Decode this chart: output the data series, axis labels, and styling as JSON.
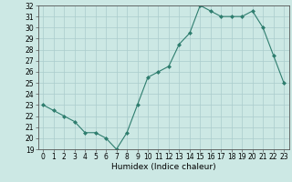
{
  "x": [
    0,
    1,
    2,
    3,
    4,
    5,
    6,
    7,
    8,
    9,
    10,
    11,
    12,
    13,
    14,
    15,
    16,
    17,
    18,
    19,
    20,
    21,
    22,
    23
  ],
  "y": [
    23,
    22.5,
    22,
    21.5,
    20.5,
    20.5,
    20,
    19,
    20.5,
    23,
    25.5,
    26,
    26.5,
    28.5,
    29.5,
    32,
    31.5,
    31,
    31,
    31,
    31.5,
    30,
    27.5,
    25
  ],
  "line_color": "#2e7d6e",
  "marker": "D",
  "marker_size": 2,
  "bg_color": "#cce8e4",
  "grid_color": "#aacccc",
  "xlabel": "Humidex (Indice chaleur)",
  "ylim": [
    19,
    32
  ],
  "xlim": [
    -0.5,
    23.5
  ],
  "yticks": [
    19,
    20,
    21,
    22,
    23,
    24,
    25,
    26,
    27,
    28,
    29,
    30,
    31,
    32
  ],
  "xticks": [
    0,
    1,
    2,
    3,
    4,
    5,
    6,
    7,
    8,
    9,
    10,
    11,
    12,
    13,
    14,
    15,
    16,
    17,
    18,
    19,
    20,
    21,
    22,
    23
  ],
  "tick_fontsize": 5.5,
  "xlabel_fontsize": 6.5
}
